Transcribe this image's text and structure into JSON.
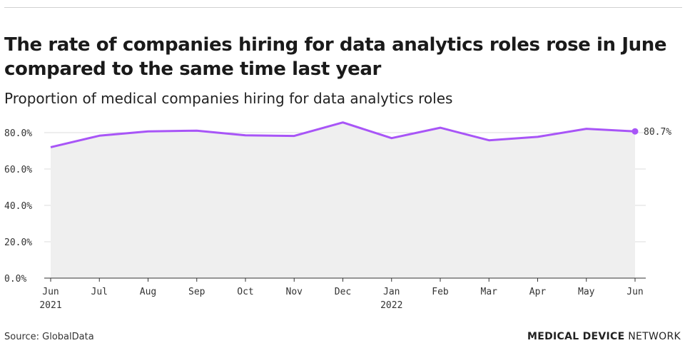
{
  "title": "The rate of companies hiring for data analytics roles rose in June compared to the same time last year",
  "subtitle": "Proportion of medical companies hiring for data analytics roles",
  "source": "Source: GlobalData",
  "brand": {
    "bold": "MEDICAL DEVICE",
    "light": "NETWORK"
  },
  "colors": {
    "line": "#a855f7",
    "area": "#efefef",
    "grid": "#dddddd"
  },
  "chart_data": {
    "type": "area",
    "title": "The rate of companies hiring for data analytics roles rose in June compared to the same time last year",
    "subtitle": "Proportion of medical companies hiring for data analytics roles",
    "xlabel": "",
    "ylabel": "",
    "categories": [
      "Jun 2021",
      "Jul",
      "Aug",
      "Sep",
      "Oct",
      "Nov",
      "Dec",
      "Jan 2022",
      "Feb",
      "Mar",
      "Apr",
      "May",
      "Jun"
    ],
    "x_tick_labels": [
      [
        "Jun",
        "2021"
      ],
      [
        "Jul"
      ],
      [
        "Aug"
      ],
      [
        "Sep"
      ],
      [
        "Oct"
      ],
      [
        "Nov"
      ],
      [
        "Dec"
      ],
      [
        "Jan",
        "2022"
      ],
      [
        "Feb"
      ],
      [
        "Mar"
      ],
      [
        "Apr"
      ],
      [
        "May"
      ],
      [
        "Jun"
      ]
    ],
    "series": [
      {
        "name": "Proportion of medical companies hiring for data analytics roles",
        "values": [
          72.0,
          78.3,
          80.7,
          81.1,
          78.5,
          78.2,
          85.6,
          77.0,
          82.7,
          75.8,
          77.7,
          82.1,
          80.7
        ]
      }
    ],
    "ylim": [
      0,
      80
    ],
    "y_ticks": [
      0,
      20,
      40,
      60,
      80
    ],
    "y_tick_labels": [
      "0.0%",
      "20.0%",
      "40.0%",
      "60.0%",
      "80.0%"
    ],
    "end_label": "80.7%",
    "grid": true
  }
}
